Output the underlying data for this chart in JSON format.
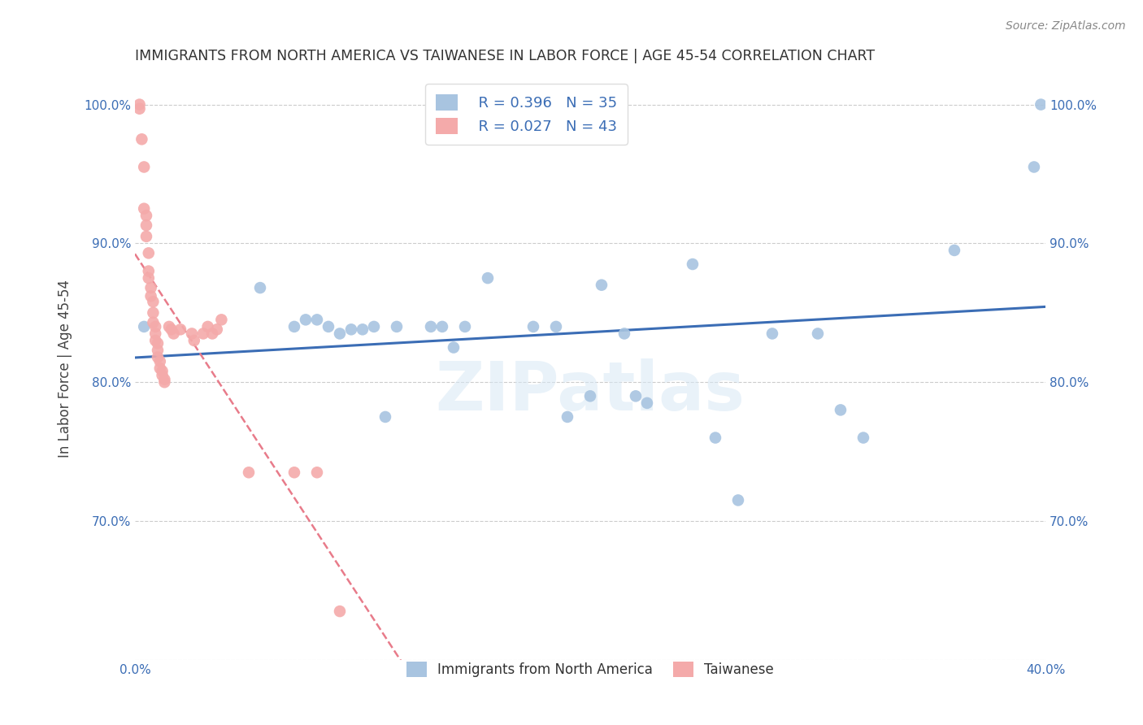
{
  "title": "IMMIGRANTS FROM NORTH AMERICA VS TAIWANESE IN LABOR FORCE | AGE 45-54 CORRELATION CHART",
  "source": "Source: ZipAtlas.com",
  "ylabel": "In Labor Force | Age 45-54",
  "xlim": [
    0.0,
    0.4
  ],
  "ylim": [
    0.6,
    1.02
  ],
  "xticks": [
    0.0,
    0.08,
    0.16,
    0.24,
    0.32,
    0.4
  ],
  "yticks": [
    0.6,
    0.7,
    0.8,
    0.9,
    1.0
  ],
  "xticklabels": [
    "0.0%",
    "",
    "",
    "",
    "",
    "40.0%"
  ],
  "yticklabels_left": [
    "",
    "70.0%",
    "80.0%",
    "90.0%",
    "100.0%"
  ],
  "yticklabels_right": [
    "",
    "70.0%",
    "80.0%",
    "90.0%",
    "100.0%"
  ],
  "blue_color": "#A8C4E0",
  "pink_color": "#F4AAAA",
  "blue_line_color": "#3B6DB5",
  "pink_line_color": "#E87B8A",
  "legend_r_blue": "R = 0.396",
  "legend_n_blue": "N = 35",
  "legend_r_pink": "R = 0.027",
  "legend_n_pink": "N = 43",
  "legend_label_blue": "Immigrants from North America",
  "legend_label_pink": "Taiwanese",
  "watermark": "ZIPatlas",
  "blue_x": [
    0.004,
    0.055,
    0.07,
    0.075,
    0.08,
    0.085,
    0.09,
    0.095,
    0.1,
    0.105,
    0.11,
    0.115,
    0.13,
    0.135,
    0.14,
    0.145,
    0.155,
    0.175,
    0.185,
    0.19,
    0.2,
    0.205,
    0.215,
    0.22,
    0.225,
    0.245,
    0.255,
    0.265,
    0.28,
    0.3,
    0.31,
    0.32,
    0.36,
    0.395,
    0.398
  ],
  "blue_y": [
    0.84,
    0.868,
    0.84,
    0.845,
    0.845,
    0.84,
    0.835,
    0.838,
    0.838,
    0.84,
    0.775,
    0.84,
    0.84,
    0.84,
    0.825,
    0.84,
    0.875,
    0.84,
    0.84,
    0.775,
    0.79,
    0.87,
    0.835,
    0.79,
    0.785,
    0.885,
    0.76,
    0.715,
    0.835,
    0.835,
    0.78,
    0.76,
    0.895,
    0.955,
    1.0
  ],
  "pink_x": [
    0.002,
    0.002,
    0.003,
    0.004,
    0.004,
    0.005,
    0.005,
    0.005,
    0.006,
    0.006,
    0.006,
    0.007,
    0.007,
    0.008,
    0.008,
    0.008,
    0.009,
    0.009,
    0.009,
    0.01,
    0.01,
    0.01,
    0.011,
    0.011,
    0.012,
    0.012,
    0.013,
    0.013,
    0.015,
    0.016,
    0.017,
    0.02,
    0.025,
    0.026,
    0.03,
    0.032,
    0.034,
    0.036,
    0.038,
    0.05,
    0.07,
    0.08,
    0.09
  ],
  "pink_y": [
    1.0,
    0.997,
    0.975,
    0.955,
    0.925,
    0.92,
    0.913,
    0.905,
    0.893,
    0.88,
    0.875,
    0.868,
    0.862,
    0.858,
    0.85,
    0.843,
    0.84,
    0.835,
    0.83,
    0.828,
    0.823,
    0.818,
    0.815,
    0.81,
    0.808,
    0.805,
    0.802,
    0.8,
    0.84,
    0.838,
    0.835,
    0.838,
    0.835,
    0.83,
    0.835,
    0.84,
    0.835,
    0.838,
    0.845,
    0.735,
    0.735,
    0.735,
    0.635
  ]
}
